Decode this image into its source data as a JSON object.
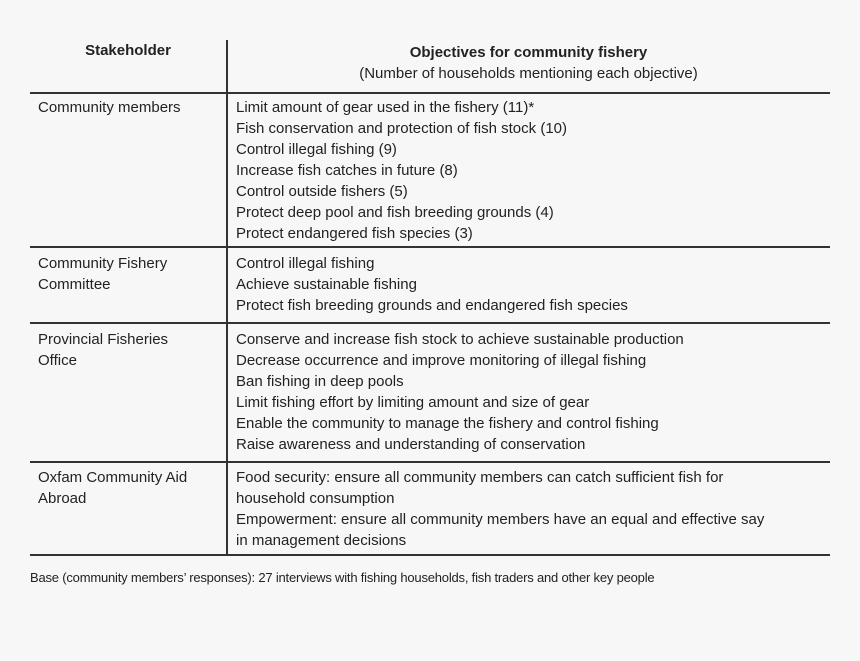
{
  "header": {
    "stakeholder": "Stakeholder",
    "objectives_title": "Objectives for community fishery",
    "objectives_subtitle": "(Number of households mentioning each objective)"
  },
  "rows": [
    {
      "stakeholder": [
        "Community members"
      ],
      "objectives": [
        "Limit amount of gear used in the fishery (11)*",
        "Fish conservation and protection of fish stock (10)",
        "Control illegal fishing (9)",
        "Increase fish catches in future (8)",
        "Control outside fishers (5)",
        "Protect deep pool and fish breeding grounds (4)",
        "Protect endangered fish species (3)"
      ]
    },
    {
      "stakeholder": [
        "Community Fishery",
        "Committee"
      ],
      "objectives": [
        "Control illegal fishing",
        "Achieve sustainable fishing",
        "Protect fish breeding grounds and endangered fish species"
      ]
    },
    {
      "stakeholder": [
        "Provincial Fisheries",
        "Office"
      ],
      "objectives": [
        "Conserve and increase fish stock to achieve sustainable production",
        "Decrease occurrence and improve monitoring of illegal fishing",
        "Ban fishing in deep pools",
        "Limit fishing effort by limiting amount and size of gear",
        "Enable the community to manage the fishery and control fishing",
        "Raise awareness and understanding of conservation"
      ]
    },
    {
      "stakeholder": [
        "Oxfam Community Aid",
        "Abroad"
      ],
      "objectives": [
        "Food security: ensure all community members can catch sufficient fish for",
        "household consumption",
        "Empowerment: ensure all community members have an equal and effective say",
        "in management decisions"
      ]
    }
  ],
  "footnote": "Base (community members’ responses): 27 interviews with fishing households, fish traders and other key people"
}
